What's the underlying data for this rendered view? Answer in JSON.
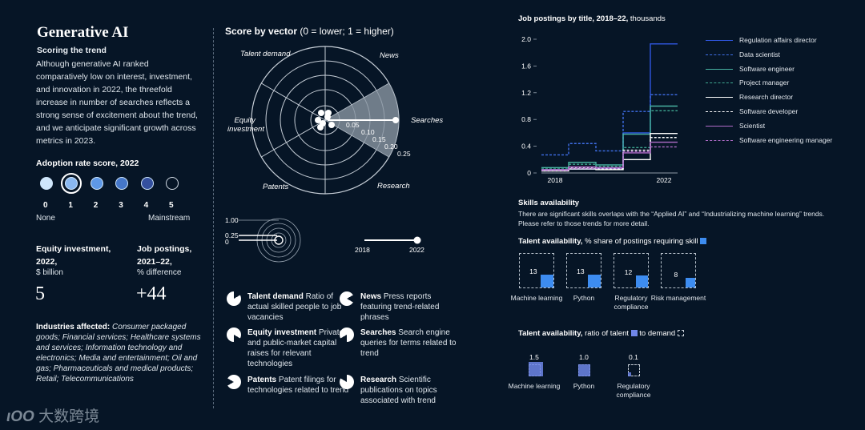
{
  "header": {
    "title": "Generative AI",
    "scoring_heading": "Scoring the trend",
    "scoring_text": "Although generative AI ranked comparatively low on interest, investment, and innovation in 2022, the threefold increase in number of searches reflects a strong sense of excitement about the trend, and we anticipate significant growth across metrics in 2023."
  },
  "adoption": {
    "heading": "Adoption rate score, 2022",
    "scores": [
      "0",
      "1",
      "2",
      "3",
      "4",
      "5"
    ],
    "selected_score": 1,
    "colors": [
      "#cfe6fb",
      "#8ab8f0",
      "#5e98e6",
      "#4577c9",
      "#34509e",
      "#061526"
    ],
    "low_label": "None",
    "high_label": "Mainstream"
  },
  "equity": {
    "label_line1": "Equity investment,",
    "label_line2": "2022,",
    "unit": "$ billion",
    "value": "5"
  },
  "jobs": {
    "label_line1": "Job postings,",
    "label_line2": "2021–22,",
    "unit": "% difference",
    "value": "+44"
  },
  "industries": {
    "label": "Industries affected:",
    "text": "Consumer packaged goods; Financial services; Healthcare systems and services; Information technology and electronics; Media and entertainment; Oil and gas; Pharmaceuticals and medical products; Retail; Telecommunications"
  },
  "score_by_vector": {
    "title_bold": "Score by vector",
    "title_rest": "(0 = lower; 1 = higher)",
    "sectors": [
      "Talent demand",
      "News",
      "Searches",
      "Research",
      "Patents",
      "Equity investment"
    ],
    "ring_labels": [
      "0.05",
      "0.10",
      "0.15",
      "0.20",
      "0.25"
    ],
    "scale_legend": {
      "labels": [
        "1.00",
        "0.25",
        "0"
      ],
      "year_start": "2018",
      "year_end": "2022"
    }
  },
  "vector_legend": [
    {
      "term": "Talent demand",
      "desc": "Ratio of actual skilled people to job vacancies"
    },
    {
      "term": "News",
      "desc": "Press reports featuring trend-related phrases"
    },
    {
      "term": "Equity investment",
      "desc": "Private- and public-market capital raises for relevant technologies"
    },
    {
      "term": "Searches",
      "desc": "Search engine queries for terms related to trend"
    },
    {
      "term": "Patents",
      "desc": "Patent filings for technologies related to trend"
    },
    {
      "term": "Research",
      "desc": "Scientific publications on topics associated with trend"
    }
  ],
  "skills": {
    "heading": "Skills availability",
    "text": "There are significant skills overlaps with the “Applied AI” and “Industrializing machine learning” trends. Please refer to those trends for more detail.",
    "share_title_bold": "Talent availability,",
    "share_title_rest": "% share of postings requiring skill",
    "share": [
      {
        "label": "Machine learning",
        "value": "13"
      },
      {
        "label": "Python",
        "value": "13"
      },
      {
        "label": "Regulatory compliance",
        "value": "12"
      },
      {
        "label": "Risk management",
        "value": "8"
      }
    ],
    "ratio_title_bold": "Talent availability,",
    "ratio_title_mid": "ratio of talent",
    "ratio_title_end": "to demand",
    "ratio": [
      {
        "label": "Machine learning",
        "value": "1.5"
      },
      {
        "label": "Python",
        "value": "1.0"
      },
      {
        "label": "Regulatory compliance",
        "value": "0.1"
      }
    ]
  },
  "chart_data": [
    {
      "type": "line",
      "title": "Job postings by title, 2018–22,",
      "title_unit": "thousands",
      "x": [
        2018,
        2019,
        2020,
        2021,
        2022
      ],
      "x_tick_labels": [
        "2018",
        "2022"
      ],
      "y_ticks": [
        "0",
        "0.4",
        "0.8",
        "1.2",
        "1.6",
        "2.0"
      ],
      "ylim": [
        0,
        2.0
      ],
      "series": [
        {
          "name": "Regulation affairs director",
          "color": "#2f56e0",
          "dash": false,
          "values": [
            0.05,
            0.06,
            0.07,
            0.6,
            1.93
          ]
        },
        {
          "name": "Data scientist",
          "color": "#3f6fe8",
          "dash": true,
          "values": [
            0.27,
            0.44,
            0.33,
            0.92,
            1.17
          ]
        },
        {
          "name": "Software engineer",
          "color": "#49b3a2",
          "dash": false,
          "values": [
            0.08,
            0.16,
            0.12,
            0.58,
            1.0
          ]
        },
        {
          "name": "Project manager",
          "color": "#3fa892",
          "dash": true,
          "values": [
            0.06,
            0.13,
            0.1,
            0.38,
            0.93
          ]
        },
        {
          "name": "Research director",
          "color": "#ffffff",
          "dash": false,
          "values": [
            0.03,
            0.06,
            0.05,
            0.2,
            0.59
          ]
        },
        {
          "name": "Software developer",
          "color": "#ffffff",
          "dash": true,
          "values": [
            0.04,
            0.08,
            0.06,
            0.34,
            0.53
          ]
        },
        {
          "name": "Scientist",
          "color": "#b06cc8",
          "dash": false,
          "values": [
            0.05,
            0.09,
            0.08,
            0.3,
            0.46
          ]
        },
        {
          "name": "Software engineering manager",
          "color": "#b06cc8",
          "dash": true,
          "values": [
            0.04,
            0.07,
            0.07,
            0.32,
            0.39
          ]
        }
      ]
    },
    {
      "type": "radar",
      "title": "Score by vector",
      "categories": [
        "Talent demand",
        "News",
        "Searches",
        "Research",
        "Patents",
        "Equity investment"
      ],
      "values": [
        0.01,
        0.01,
        0.25,
        0.01,
        0.01,
        0.01
      ],
      "rlim": [
        0,
        0.25
      ]
    },
    {
      "type": "bar",
      "title": "Talent availability, % share of postings requiring skill",
      "categories": [
        "Machine learning",
        "Python",
        "Regulatory compliance",
        "Risk management"
      ],
      "values": [
        13,
        13,
        12,
        8
      ]
    },
    {
      "type": "bar",
      "title": "Talent availability, ratio of talent to demand",
      "categories": [
        "Machine learning",
        "Python",
        "Regulatory compliance"
      ],
      "values": [
        1.5,
        1.0,
        0.1
      ]
    }
  ],
  "watermark": {
    "text": "大数跨境"
  }
}
